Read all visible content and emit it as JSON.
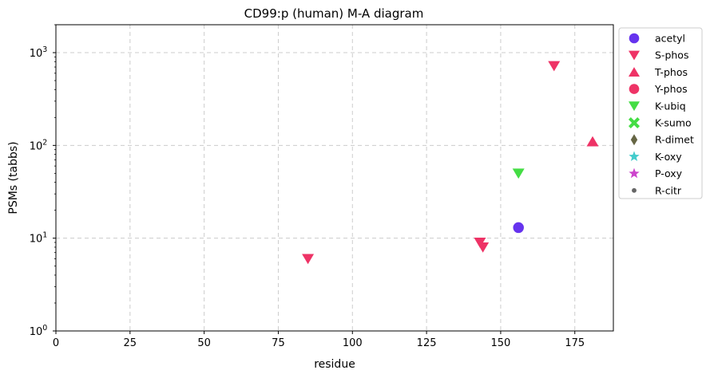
{
  "chart_data": {
    "type": "scatter",
    "title": "CD99:p (human) M-A diagram",
    "xlabel": "residue",
    "ylabel": "PSMs (tabbs)",
    "xlim": [
      0,
      188
    ],
    "ylim": [
      1,
      2000
    ],
    "yscale": "log",
    "grid": true,
    "legend_position": "outside-top-right",
    "x_ticks": [
      0,
      25,
      50,
      75,
      100,
      125,
      150,
      175
    ],
    "x_tick_labels": [
      "0",
      "25",
      "50",
      "75",
      "100",
      "125",
      "150",
      "175"
    ],
    "y_ticks": [
      1,
      10,
      100,
      1000
    ],
    "y_tick_labels": [
      {
        "base": "10",
        "exp": "0"
      },
      {
        "base": "10",
        "exp": "1"
      },
      {
        "base": "10",
        "exp": "2"
      },
      {
        "base": "10",
        "exp": "3"
      }
    ],
    "series": [
      {
        "name": "acetyl",
        "marker": "circle",
        "color": "#6633ee",
        "points": [
          {
            "x": 156,
            "y": 13
          }
        ]
      },
      {
        "name": "S-phos",
        "marker": "triangle-down",
        "color": "#ee3366",
        "points": [
          {
            "x": 85,
            "y": 6
          },
          {
            "x": 143,
            "y": 9
          },
          {
            "x": 144,
            "y": 8
          },
          {
            "x": 168,
            "y": 720
          }
        ]
      },
      {
        "name": "T-phos",
        "marker": "triangle-up",
        "color": "#ee3366",
        "points": [
          {
            "x": 181,
            "y": 110
          }
        ]
      },
      {
        "name": "Y-phos",
        "marker": "circle",
        "color": "#ee3366",
        "points": []
      },
      {
        "name": "K-ubiq",
        "marker": "triangle-down",
        "color": "#44dd44",
        "points": [
          {
            "x": 156,
            "y": 50
          }
        ]
      },
      {
        "name": "K-sumo",
        "marker": "x-thick",
        "color": "#44dd44",
        "points": []
      },
      {
        "name": "R-dimet",
        "marker": "diamond-thin",
        "color": "#666644",
        "points": []
      },
      {
        "name": "K-oxy",
        "marker": "star",
        "color": "#44cccc",
        "points": []
      },
      {
        "name": "P-oxy",
        "marker": "star",
        "color": "#cc44cc",
        "points": []
      },
      {
        "name": "R-citr",
        "marker": "dot",
        "color": "#666666",
        "points": []
      }
    ]
  }
}
